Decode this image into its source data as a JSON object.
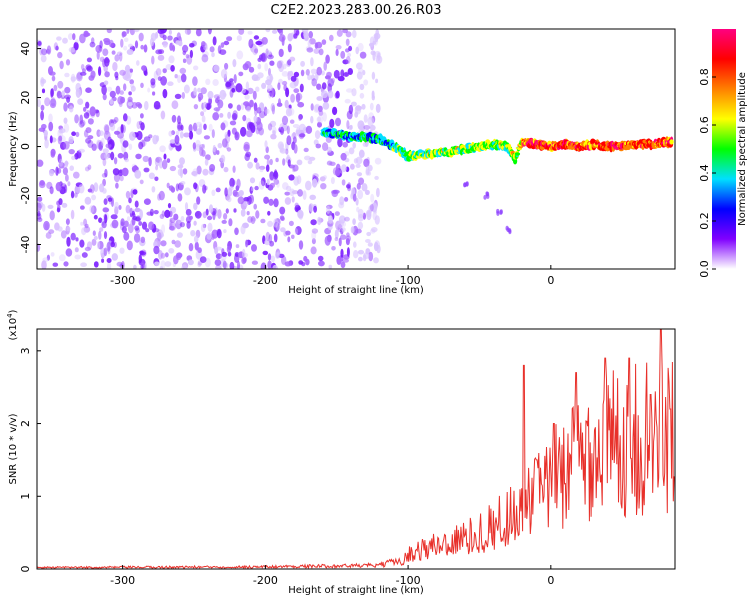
{
  "title": "C2E2.2023.283.00.26.R03",
  "chart_data": [
    {
      "type": "heatmap",
      "xlabel": "Height of straight line (km)",
      "ylabel": "Frequency (Hz)",
      "xlim": [
        -360,
        87
      ],
      "ylim": [
        -50,
        48
      ],
      "xticks": [
        -300,
        -200,
        -100,
        0
      ],
      "xtick_labels": [
        "-300",
        "-200",
        "-100",
        "0"
      ],
      "yticks": [
        -40,
        -20,
        0,
        20,
        40
      ],
      "ytick_labels": [
        "-40",
        "-20",
        "0",
        "20",
        "40"
      ],
      "colorbar": {
        "label": "Normalized spectral amplitude",
        "range": [
          0,
          1
        ],
        "ticks": [
          0.0,
          0.2,
          0.4,
          0.6,
          0.8
        ],
        "tick_labels": [
          "0.0",
          "0.2",
          "0.4",
          "0.6",
          "0.8"
        ],
        "colormap": [
          "#ffffff",
          "#8000ff",
          "#0000ff",
          "#00e0ff",
          "#00ff00",
          "#ffff00",
          "#ff8000",
          "#ff0000",
          "#ff0080"
        ]
      },
      "regions": [
        {
          "name": "noise",
          "x": [
            -360,
            -120
          ],
          "y": [
            -50,
            48
          ],
          "amplitude": 0.2
        },
        {
          "name": "signal",
          "points": [
            [
              -160,
              6
            ],
            [
              -150,
              5
            ],
            [
              -140,
              4
            ],
            [
              -130,
              4
            ],
            [
              -120,
              3
            ],
            [
              -110,
              0
            ],
            [
              -100,
              -4
            ],
            [
              -90,
              -3
            ],
            [
              -80,
              -3
            ],
            [
              -70,
              -2
            ],
            [
              -60,
              -1
            ],
            [
              -50,
              0
            ],
            [
              -40,
              1
            ],
            [
              -30,
              0
            ],
            [
              -25,
              -5
            ],
            [
              -20,
              2
            ],
            [
              -10,
              1
            ],
            [
              0,
              0
            ],
            [
              10,
              1
            ],
            [
              20,
              0
            ],
            [
              30,
              1
            ],
            [
              40,
              0
            ],
            [
              50,
              0
            ],
            [
              60,
              1
            ],
            [
              70,
              1
            ],
            [
              85,
              2
            ]
          ]
        },
        {
          "name": "trail",
          "points": [
            [
              -60,
              -15
            ],
            [
              -45,
              -20
            ],
            [
              -36,
              -27
            ],
            [
              -30,
              -34
            ]
          ]
        }
      ]
    },
    {
      "type": "line",
      "xlabel": "Height of straight line (km)",
      "ylabel": "SNR (10 * v/v)",
      "multiplier_label": "(x10",
      "multiplier_exponent": "4",
      "multiplier_close": ")",
      "xlim": [
        -360,
        87
      ],
      "ylim": [
        0,
        3.3
      ],
      "xticks": [
        -300,
        -200,
        -100,
        0
      ],
      "xtick_labels": [
        "-300",
        "-200",
        "-100",
        "0"
      ],
      "yticks": [
        0,
        1,
        2,
        3
      ],
      "ytick_labels": [
        "0",
        "1",
        "2",
        "3"
      ],
      "series": [
        {
          "color": "#e8302a",
          "envelope": [
            {
              "x": -360,
              "y": 0.02
            },
            {
              "x": -200,
              "y": 0.03
            },
            {
              "x": -120,
              "y": 0.05
            },
            {
              "x": -105,
              "y": 0.12
            },
            {
              "x": -95,
              "y": 0.25
            },
            {
              "x": -85,
              "y": 0.3
            },
            {
              "x": -75,
              "y": 0.35
            },
            {
              "x": -65,
              "y": 0.4
            },
            {
              "x": -55,
              "y": 0.45
            },
            {
              "x": -45,
              "y": 0.55
            },
            {
              "x": -35,
              "y": 0.65
            },
            {
              "x": -25,
              "y": 0.8
            },
            {
              "x": -15,
              "y": 0.95
            },
            {
              "x": -5,
              "y": 1.05
            },
            {
              "x": 5,
              "y": 1.3
            },
            {
              "x": 15,
              "y": 1.5
            },
            {
              "x": 25,
              "y": 1.6
            },
            {
              "x": 35,
              "y": 1.7
            },
            {
              "x": 45,
              "y": 1.75
            },
            {
              "x": 55,
              "y": 1.75
            },
            {
              "x": 65,
              "y": 1.8
            },
            {
              "x": 75,
              "y": 1.75
            },
            {
              "x": 87,
              "y": 1.8
            }
          ],
          "peaks": [
            {
              "x": -19,
              "y": 2.8
            },
            {
              "x": -10,
              "y": 1.5
            },
            {
              "x": 2,
              "y": 2.0
            },
            {
              "x": 18,
              "y": 2.7
            },
            {
              "x": 38,
              "y": 2.9
            },
            {
              "x": 55,
              "y": 2.9
            },
            {
              "x": 70,
              "y": 2.4
            },
            {
              "x": 77,
              "y": 3.3
            },
            {
              "x": 84,
              "y": 2.2
            }
          ]
        }
      ]
    }
  ]
}
